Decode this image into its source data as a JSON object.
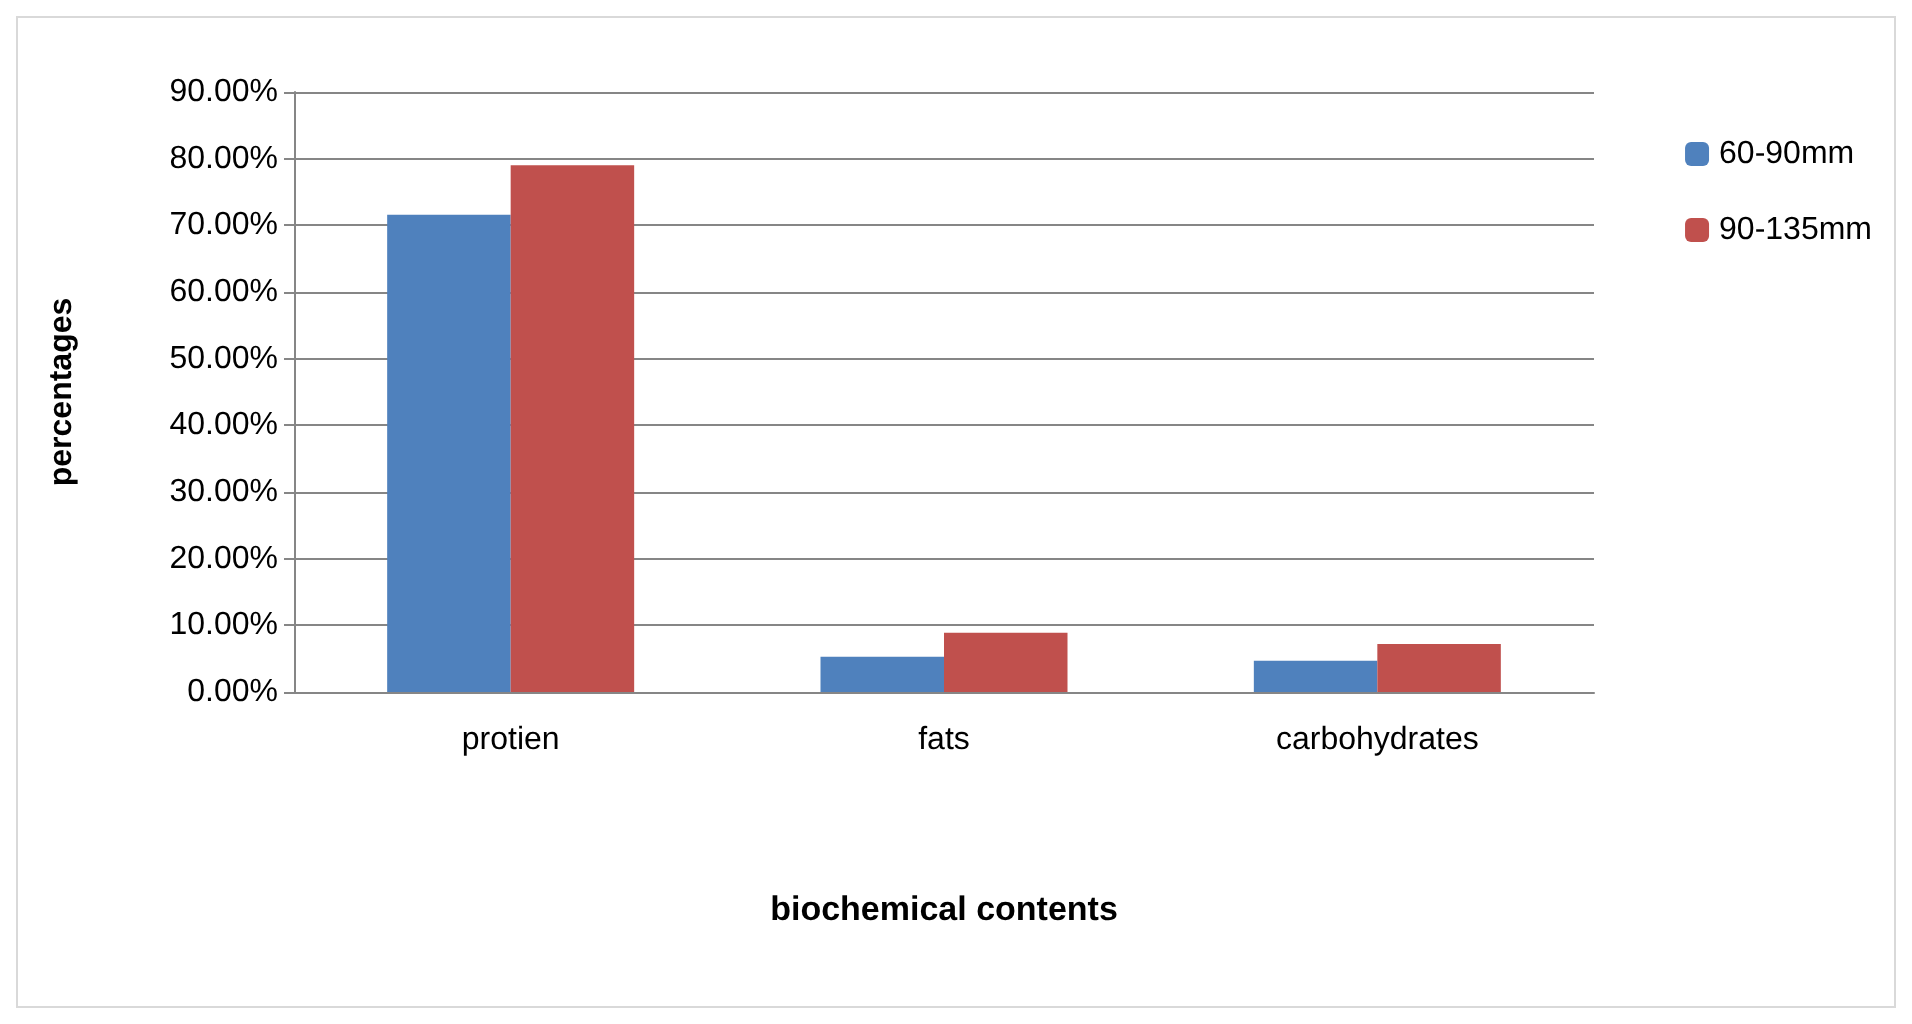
{
  "chart_data": {
    "type": "bar",
    "xlabel": "biochemical contents",
    "ylabel": "percentages",
    "categories": [
      "protien",
      "fats",
      "carbohydrates"
    ],
    "series": [
      {
        "name": "60-90mm",
        "color": "#4f81bd",
        "values": [
          71.6,
          5.3,
          4.7
        ]
      },
      {
        "name": "90-135mm",
        "color": "#c0504d",
        "values": [
          79.0,
          8.9,
          7.2
        ]
      }
    ],
    "ylim": [
      0,
      90
    ],
    "yticks": [
      {
        "value": 0,
        "label": "0.00%"
      },
      {
        "value": 10,
        "label": "10.00%"
      },
      {
        "value": 20,
        "label": "20.00%"
      },
      {
        "value": 30,
        "label": "30.00%"
      },
      {
        "value": 40,
        "label": "40.00%"
      },
      {
        "value": 50,
        "label": "50.00%"
      },
      {
        "value": 60,
        "label": "60.00%"
      },
      {
        "value": 70,
        "label": "70.00%"
      },
      {
        "value": 80,
        "label": "80.00%"
      },
      {
        "value": 90,
        "label": "90.00%"
      }
    ],
    "grid": "y",
    "legend": "top right"
  }
}
